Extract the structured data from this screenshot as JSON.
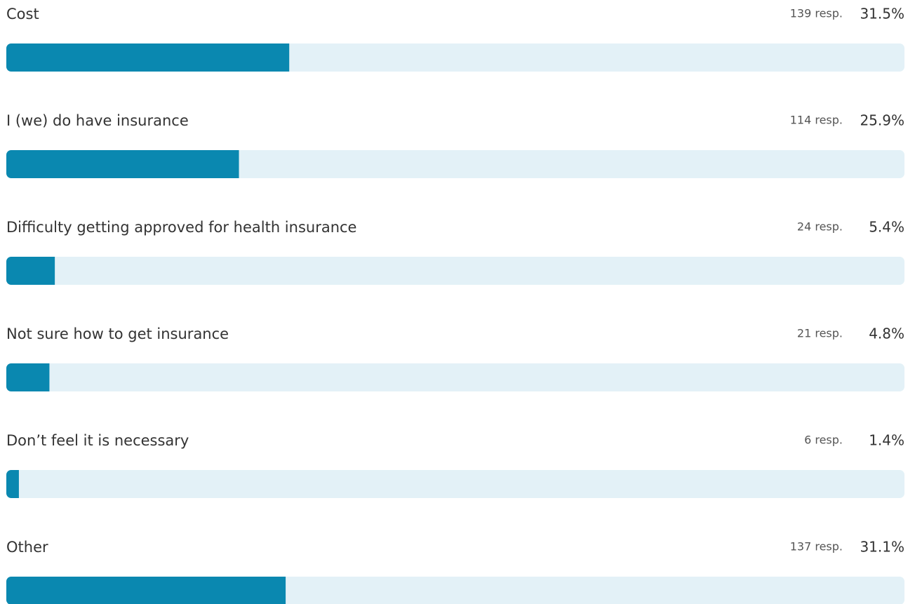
{
  "chart_data": {
    "type": "bar",
    "orientation": "horizontal",
    "categories": [
      "Cost",
      "I (we) do have insurance",
      "Difficulty getting approved for health insurance",
      "Not sure how to get insurance",
      "Don’t feel it is necessary",
      "Other"
    ],
    "values": [
      31.5,
      25.9,
      5.4,
      4.8,
      1.4,
      31.1
    ],
    "value_labels": [
      "31.5%",
      "25.9%",
      "5.4%",
      "4.8%",
      "1.4%",
      "31.1%"
    ],
    "responses": [
      139,
      114,
      24,
      21,
      6,
      137
    ],
    "response_labels": [
      "139 resp.",
      "114 resp.",
      "24 resp.",
      "21 resp.",
      "6 resp.",
      "137 resp."
    ],
    "color": "#0a88b0",
    "track_color": "#e3f1f7",
    "xlim": [
      0,
      100
    ]
  }
}
